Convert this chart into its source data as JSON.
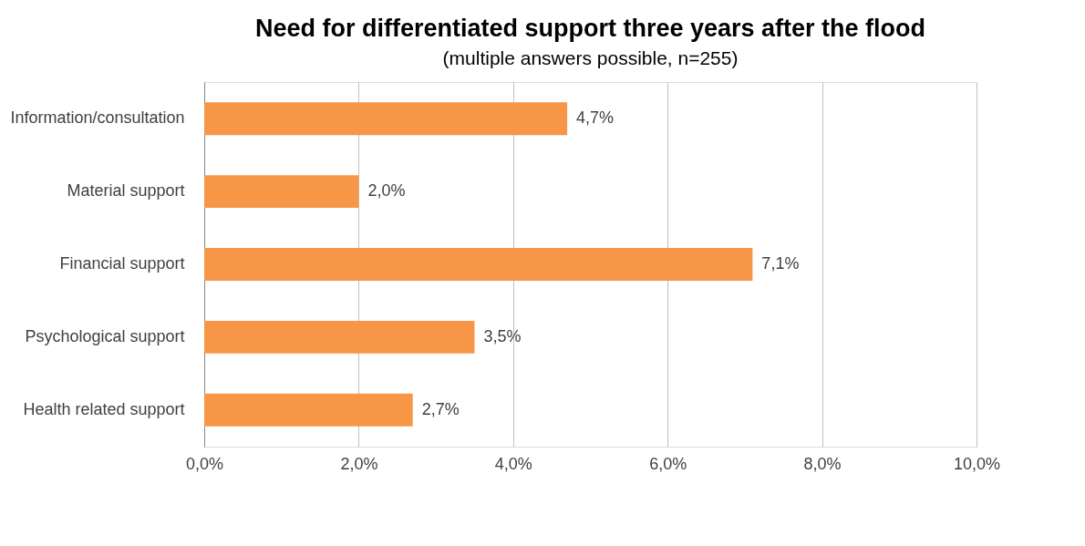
{
  "chart_data": {
    "type": "bar",
    "orientation": "horizontal",
    "title": "Need for differentiated support three years after the flood",
    "subtitle": "(multiple answers possible, n=255)",
    "categories": [
      "Information/consultation",
      "Material support",
      "Financial support",
      "Psychological support",
      "Health related support"
    ],
    "values": [
      4.7,
      2.0,
      7.1,
      3.5,
      2.7
    ],
    "value_labels": [
      "4,7%",
      "2,0%",
      "7,1%",
      "3,5%",
      "2,7%"
    ],
    "color": "#f79646",
    "xlim": [
      0,
      10
    ],
    "xticks": [
      {
        "value": 0,
        "label": "0,0%"
      },
      {
        "value": 2,
        "label": "2,0%"
      },
      {
        "value": 4,
        "label": "4,0%"
      },
      {
        "value": 6,
        "label": "6,0%"
      },
      {
        "value": 8,
        "label": "8,0%"
      },
      {
        "value": 10,
        "label": "10,0%"
      }
    ],
    "grid": "x"
  }
}
